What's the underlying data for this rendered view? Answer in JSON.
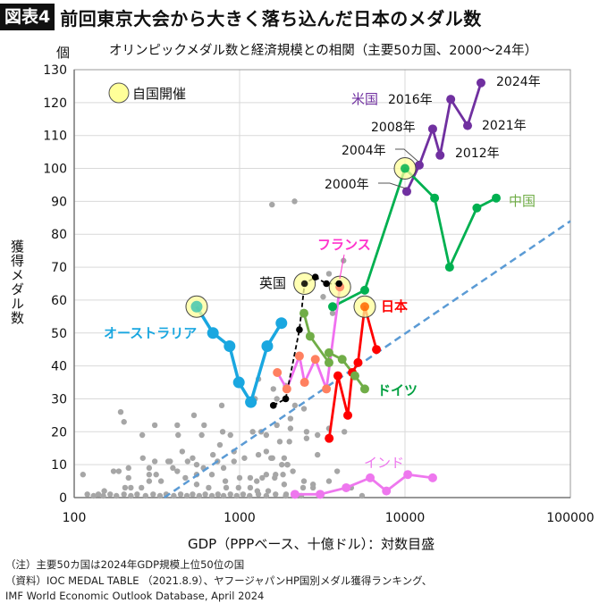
{
  "header": {
    "figure_number": "図表4",
    "title": "前回東京大会から大きく落ち込んだ日本のメダル数"
  },
  "footnotes": {
    "note": "（注）主要50カ国は2024年GDP規模上位50位の国",
    "source1": "（資料）IOC MEDAL TABLE （2021.8.9）、ヤフージャパンHP国別メダル獲得ランキング、",
    "source2": "IMF World Economic Outlook Database, April 2024"
  },
  "chart_data": {
    "type": "scatter",
    "title": "オリンピックメダル数と経済規模との相関（主要50カ国、2000〜24年）",
    "xlabel": "GDP（PPPベース、十億ドル）：対数目盛",
    "ylabel": "獲得メダル数",
    "yunit": "個",
    "x_scale": "log",
    "xlim": [
      100,
      100000
    ],
    "ylim": [
      0,
      130
    ],
    "x_ticks": [
      "100",
      "1000",
      "10000",
      "100000"
    ],
    "y_ticks": [
      "0",
      "10",
      "20",
      "30",
      "40",
      "50",
      "60",
      "70",
      "80",
      "90",
      "100",
      "110",
      "120",
      "130"
    ],
    "grid": true,
    "years": [
      2000,
      2004,
      2008,
      2012,
      2016,
      2021,
      2024
    ],
    "legend": {
      "host_label": "自国開催",
      "host_color": "#ffff99"
    },
    "year_labels": {
      "y2000": "2000年",
      "y2004": "2004年",
      "y2008": "2008年",
      "y2012": "2012年",
      "y2016": "2016年",
      "y2021": "2021年",
      "y2024": "2024年"
    },
    "series": [
      {
        "name": "米国",
        "color": "#7030a0",
        "style": "solid",
        "gdp": [
          10250,
          12200,
          14700,
          16300,
          18900,
          23900,
          28800
        ],
        "medals": [
          93,
          101,
          112,
          104,
          121,
          113,
          126
        ],
        "host": []
      },
      {
        "name": "中国",
        "color": "#00b050",
        "label_color": "#70ad47",
        "style": "solid",
        "gdp": [
          3650,
          5710,
          10000,
          15100,
          18600,
          27200,
          35600
        ],
        "medals": [
          58,
          63,
          100,
          91,
          70,
          88,
          91
        ],
        "host": [
          2008
        ]
      },
      {
        "name": "日本",
        "color": "#ff0000",
        "style": "solid",
        "gdp": [
          3480,
          3930,
          4510,
          4800,
          5200,
          5710,
          6720
        ],
        "medals": [
          18,
          37,
          25,
          38,
          41,
          58,
          45
        ],
        "host": [
          2021
        ]
      },
      {
        "name": "ドイツ",
        "color": "#70ad47",
        "label_color": "#00a040",
        "style": "solid",
        "gdp": [
          2450,
          2670,
          3470,
          3470,
          4170,
          4980,
          5710
        ],
        "medals": [
          56,
          49,
          41,
          44,
          42,
          37,
          33
        ],
        "host": []
      },
      {
        "name": "フランス",
        "color": "#f070f0",
        "label_color": "#ff33cc",
        "marker_color": "#ff8060",
        "style": "solid",
        "gdp": [
          1690,
          1930,
          2300,
          2470,
          2870,
          3350,
          4040
        ],
        "medals": [
          38,
          33,
          43,
          35,
          42,
          33,
          64
        ],
        "host": [
          2024
        ]
      },
      {
        "name": "英国",
        "color": "#000000",
        "style": "dashed",
        "gdp": [
          1600,
          1900,
          2300,
          2470,
          2870,
          3350,
          3990
        ],
        "medals": [
          28,
          30,
          51,
          65,
          67,
          65,
          65
        ],
        "host": [
          2012
        ]
      },
      {
        "name": "オーストラリア",
        "color": "#1aa7e0",
        "style": "solid",
        "gdp": [
          550,
          690,
          870,
          990,
          1170,
          1470,
          1790
        ],
        "medals": [
          58,
          50,
          46,
          35,
          29,
          46,
          53
        ],
        "host": [
          2000
        ]
      },
      {
        "name": "インド",
        "color": "#ee77ee",
        "style": "solid",
        "gdp": [
          2160,
          3070,
          4410,
          6160,
          7720,
          10400,
          14700
        ],
        "medals": [
          1,
          1,
          3,
          6,
          2,
          7,
          6
        ],
        "host": []
      }
    ],
    "trendline": {
      "color": "#5b9bd5",
      "style": "dashed",
      "points": [
        [
          350,
          0
        ],
        [
          100000,
          84
        ]
      ]
    },
    "others": {
      "color": "#a6a6a6",
      "points": [
        [
          191,
          26
        ],
        [
          200,
          23
        ],
        [
          307,
          22
        ],
        [
          420,
          22
        ],
        [
          530,
          25
        ],
        [
          780,
          28
        ],
        [
          610,
          22
        ],
        [
          258,
          19
        ],
        [
          425,
          19
        ],
        [
          590,
          19
        ],
        [
          790,
          20
        ],
        [
          880,
          19
        ],
        [
          760,
          16
        ],
        [
          450,
          14
        ],
        [
          260,
          12
        ],
        [
          307,
          11
        ],
        [
          380,
          11
        ],
        [
          485,
          11
        ],
        [
          520,
          12
        ],
        [
          690,
          13
        ],
        [
          925,
          14
        ],
        [
          1070,
          12
        ],
        [
          1200,
          20
        ],
        [
          1350,
          20
        ],
        [
          1450,
          19
        ],
        [
          1680,
          22
        ],
        [
          2030,
          21
        ],
        [
          1750,
          17
        ],
        [
          2000,
          17
        ],
        [
          1300,
          13
        ],
        [
          1450,
          14
        ],
        [
          1550,
          12
        ],
        [
          1860,
          12
        ],
        [
          1800,
          10
        ],
        [
          1950,
          10
        ],
        [
          2100,
          8
        ],
        [
          113,
          7
        ],
        [
          173,
          8
        ],
        [
          186,
          8
        ],
        [
          213,
          9
        ],
        [
          213,
          6
        ],
        [
          284,
          9
        ],
        [
          284,
          7
        ],
        [
          313,
          7
        ],
        [
          284,
          5
        ],
        [
          335,
          5
        ],
        [
          370,
          11
        ],
        [
          395,
          9
        ],
        [
          420,
          8
        ],
        [
          470,
          6
        ],
        [
          550,
          10
        ],
        [
          550,
          7
        ],
        [
          605,
          9
        ],
        [
          680,
          7
        ],
        [
          735,
          11
        ],
        [
          800,
          9
        ],
        [
          820,
          5
        ],
        [
          925,
          11
        ],
        [
          1000,
          6
        ],
        [
          1160,
          6
        ],
        [
          1270,
          5
        ],
        [
          1370,
          6
        ],
        [
          1450,
          7
        ],
        [
          1650,
          7
        ],
        [
          1830,
          7
        ],
        [
          203,
          3
        ],
        [
          220,
          3
        ],
        [
          255,
          3
        ],
        [
          152,
          2
        ],
        [
          120,
          1
        ],
        [
          131,
          0.5
        ],
        [
          140,
          1
        ],
        [
          150,
          0
        ],
        [
          165,
          1
        ],
        [
          180,
          0
        ],
        [
          200,
          1
        ],
        [
          220,
          0
        ],
        [
          240,
          1
        ],
        [
          270,
          0
        ],
        [
          300,
          1
        ],
        [
          330,
          0
        ],
        [
          360,
          1
        ],
        [
          400,
          0
        ],
        [
          440,
          1
        ],
        [
          480,
          0
        ],
        [
          520,
          1
        ],
        [
          570,
          0
        ],
        [
          620,
          1
        ],
        [
          680,
          0
        ],
        [
          740,
          1
        ],
        [
          800,
          0
        ],
        [
          880,
          1
        ],
        [
          960,
          0
        ],
        [
          1050,
          1
        ],
        [
          1150,
          0
        ],
        [
          1300,
          1
        ],
        [
          1450,
          0
        ],
        [
          1650,
          1
        ],
        [
          1900,
          0
        ],
        [
          550,
          4
        ],
        [
          650,
          3
        ],
        [
          830,
          3
        ],
        [
          985,
          3
        ],
        [
          1160,
          3
        ],
        [
          1280,
          2
        ],
        [
          1490,
          2
        ],
        [
          1680,
          30
        ],
        [
          2160,
          28
        ],
        [
          2450,
          27
        ],
        [
          2030,
          24
        ],
        [
          2540,
          20
        ],
        [
          2540,
          18
        ],
        [
          2960,
          19
        ],
        [
          2960,
          13
        ],
        [
          3470,
          21
        ],
        [
          4300,
          20
        ],
        [
          1580,
          12
        ],
        [
          1940,
          10
        ],
        [
          1630,
          6
        ],
        [
          1860,
          4
        ],
        [
          2450,
          5
        ],
        [
          2780,
          4
        ],
        [
          2780,
          3
        ],
        [
          2420,
          3
        ],
        [
          3470,
          5
        ],
        [
          3890,
          8
        ],
        [
          4730,
          3
        ],
        [
          5500,
          0
        ],
        [
          2360,
          0
        ],
        [
          1910,
          1
        ],
        [
          1570,
          89
        ],
        [
          2150,
          90
        ],
        [
          3470,
          68
        ],
        [
          3200,
          61
        ],
        [
          3650,
          56
        ],
        [
          4250,
          72
        ],
        [
          1300,
          36
        ],
        [
          1240,
          30
        ],
        [
          1600,
          33
        ],
        [
          1900,
          34
        ]
      ]
    }
  }
}
